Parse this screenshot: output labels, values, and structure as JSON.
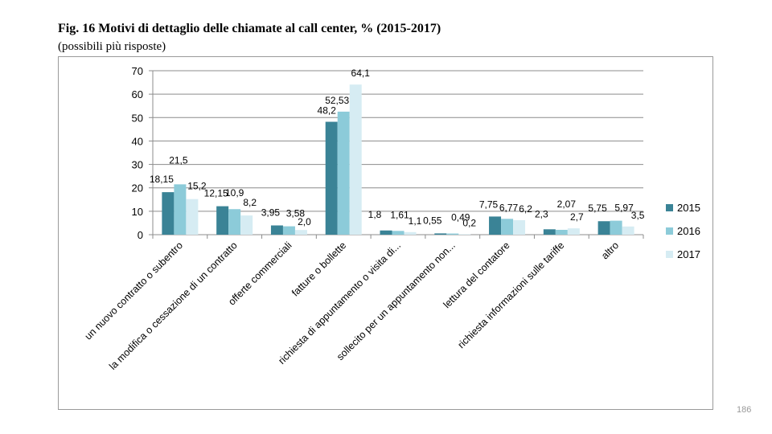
{
  "page": {
    "title": "Fig. 16 Motivi di dettaglio delle chiamate al call center, % (2015-2017)",
    "subtitle": "(possibili più risposte)",
    "page_number": "186"
  },
  "colors": {
    "2015": "#3a8396",
    "2016": "#8ccbd9",
    "2017": "#d6ecf3",
    "grid": "#8c8c8c",
    "axis": "#8c8c8c",
    "text": "#000000"
  },
  "chart_data": {
    "type": "bar",
    "title": "",
    "xlabel": "",
    "ylabel": "",
    "ylim": [
      0,
      70
    ],
    "yticks": [
      0,
      10,
      20,
      30,
      40,
      50,
      60,
      70
    ],
    "grid": true,
    "legend_position": "right",
    "categories": [
      "un nuovo contratto o subentro",
      "la modifica o cessazione di un contratto",
      "offerte commerciali",
      "fatture o bollette",
      "richiesta di appuntamento o visita di...",
      "sollecito per un appuntamento non...",
      "lettura del contatore",
      "richiesta informazioni sulle tariffe",
      "altro"
    ],
    "series": [
      {
        "name": "2015",
        "values": [
          18.15,
          12.15,
          3.95,
          48.2,
          1.8,
          0.55,
          7.75,
          2.3,
          5.75
        ],
        "labels": [
          "18,15",
          "12,15",
          "3,95",
          "48,2",
          "1,8",
          "0,55",
          "7,75",
          "2,3",
          "5,75"
        ]
      },
      {
        "name": "2016",
        "values": [
          21.5,
          10.9,
          3.58,
          52.53,
          1.61,
          0.49,
          6.77,
          2.07,
          5.97
        ],
        "labels": [
          "21,5",
          "10,9",
          "3,58",
          "52,53",
          "1,61",
          "0,49",
          "6,77",
          "2,07",
          "5,97"
        ]
      },
      {
        "name": "2017",
        "values": [
          15.2,
          8.2,
          2.0,
          64.1,
          1.1,
          0.2,
          6.2,
          2.7,
          3.5
        ],
        "labels": [
          "15,2",
          "8,2",
          "2,0",
          "64,1",
          "1,1",
          "0,2",
          "6,2",
          "2,7",
          "3,5"
        ]
      }
    ]
  }
}
